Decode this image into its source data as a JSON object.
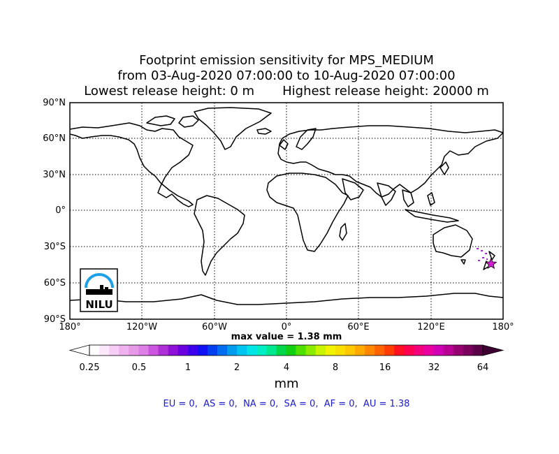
{
  "title": {
    "line1": "Footprint emission sensitivity for MPS_MEDIUM",
    "line2": "from 03-Aug-2020 07:00:00 to 10-Aug-2020 07:00:00",
    "line3": "Lowest release height: 0 m       Highest release height: 20000 m"
  },
  "map": {
    "lat_labels": [
      "90°N",
      "60°N",
      "30°N",
      "0°",
      "30°S",
      "60°S",
      "90°S"
    ],
    "lon_labels": [
      "180°",
      "120°W",
      "60°W",
      "0°",
      "60°E",
      "120°E",
      "180°"
    ],
    "max_value": "max value = 1.38 mm",
    "logo_text": "NILU",
    "release_marker": {
      "lon": 170.0,
      "lat": -44.0,
      "color": "#d11fd1"
    }
  },
  "colorbar": {
    "ticks": [
      "0.25",
      "0.5",
      "1",
      "2",
      "4",
      "8",
      "16",
      "32",
      "64"
    ],
    "unit": "mm"
  },
  "regions": "EU = 0,  AS = 0,  NA = 0,  SA = 0,  AF = 0,  AU = 1.38"
}
